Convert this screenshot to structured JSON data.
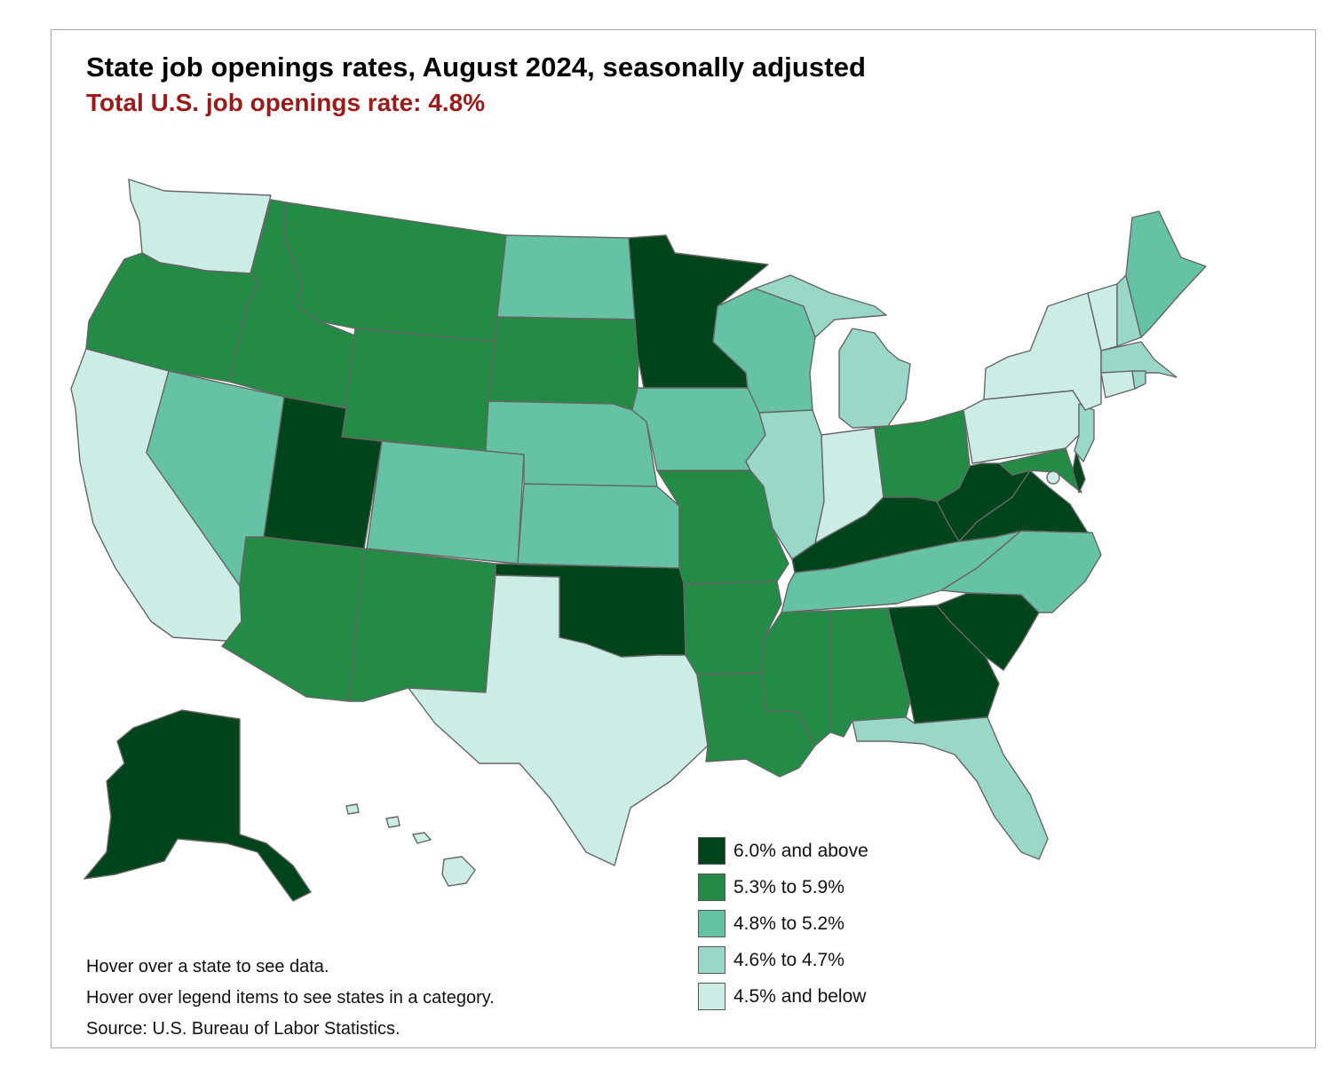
{
  "title": "State job openings rates, August 2024, seasonally adjusted",
  "subtitle": "Total U.S. job openings rate: 4.8%",
  "colors": {
    "c6plus": "#00441b",
    "c53to59": "#238b45",
    "c48to52": "#66c2a4",
    "c46to47": "#99d8c9",
    "c45below": "#ccece6"
  },
  "legend": [
    {
      "label": "6.0% and above",
      "color": "#00441b"
    },
    {
      "label": "5.3% to 5.9%",
      "color": "#238b45"
    },
    {
      "label": "4.8% to 5.2%",
      "color": "#66c2a4"
    },
    {
      "label": "4.6% to 4.7%",
      "color": "#99d8c9"
    },
    {
      "label": "4.5% and below",
      "color": "#ccece6"
    }
  ],
  "notes": {
    "hover_state": "Hover over a state to see data.",
    "hover_legend": "Hover over legend items to see states in a category.",
    "source": "Source: U.S. Bureau of Labor Statistics."
  }
}
